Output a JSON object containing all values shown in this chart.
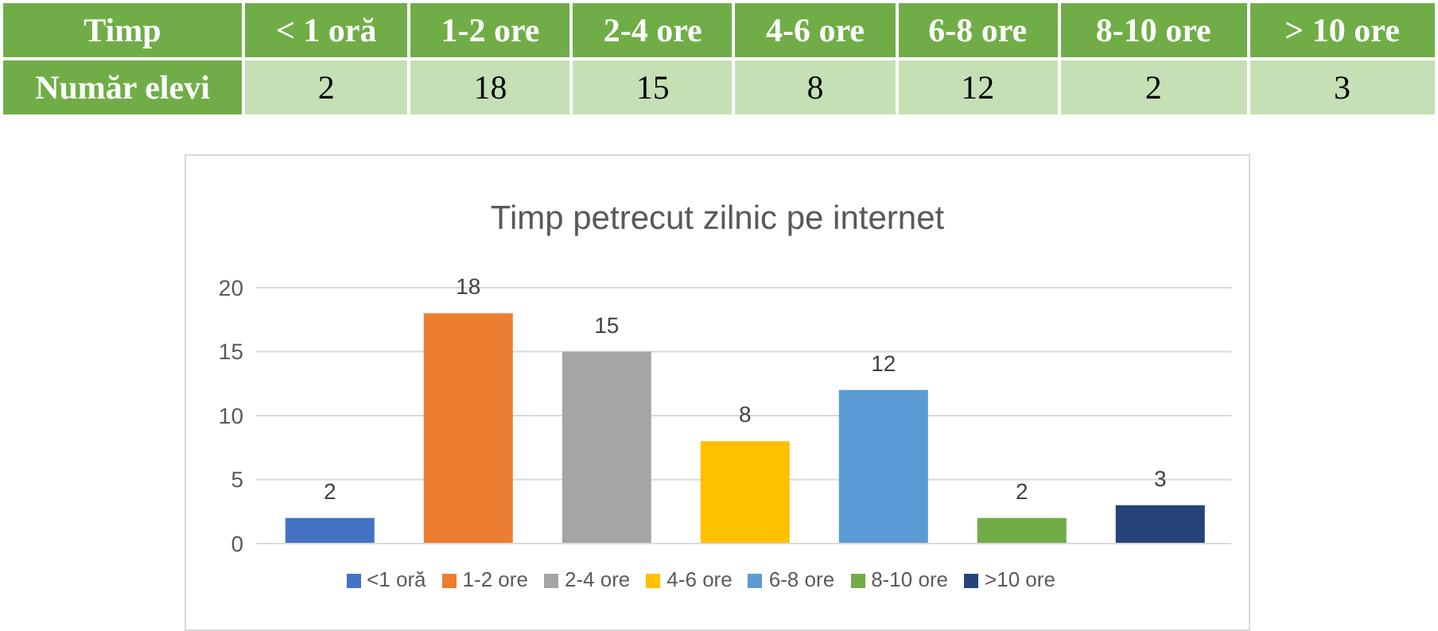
{
  "chart_data": [
    {
      "type": "other",
      "annotations": [
        "Timp",
        "Număr elevi"
      ],
      "categories": [
        "< 1 oră",
        "1-2 ore",
        "2-4 ore",
        "4-6 ore",
        "6-8 ore",
        "8-10 ore",
        "> 10 ore"
      ],
      "values": [
        2,
        18,
        15,
        8,
        12,
        2,
        3
      ],
      "data_labels": true
    },
    {
      "type": "bar",
      "title": "Timp petrecut zilnic pe internet",
      "categories": [
        null
      ],
      "series": [
        {
          "name": "<1 oră",
          "color": "#4472c4",
          "values": [
            2
          ]
        },
        {
          "name": "1-2 ore",
          "color": "#ed7d31",
          "values": [
            18
          ]
        },
        {
          "name": "2-4 ore",
          "color": "#a5a5a5",
          "values": [
            15
          ]
        },
        {
          "name": "4-6 ore",
          "color": "#ffc000",
          "values": [
            8
          ]
        },
        {
          "name": "6-8 ore",
          "color": "#5b9bd5",
          "values": [
            12
          ]
        },
        {
          "name": "8-10 ore",
          "color": "#70ad47",
          "values": [
            2
          ]
        },
        {
          "name": ">10 ore",
          "color": "#264478",
          "values": [
            3
          ]
        }
      ],
      "ylim": [
        0,
        20
      ],
      "yticks": [
        0,
        5,
        10,
        15,
        20
      ],
      "tick_labels": "y",
      "grid": "y",
      "legend": "bottom",
      "data_labels": true
    }
  ]
}
